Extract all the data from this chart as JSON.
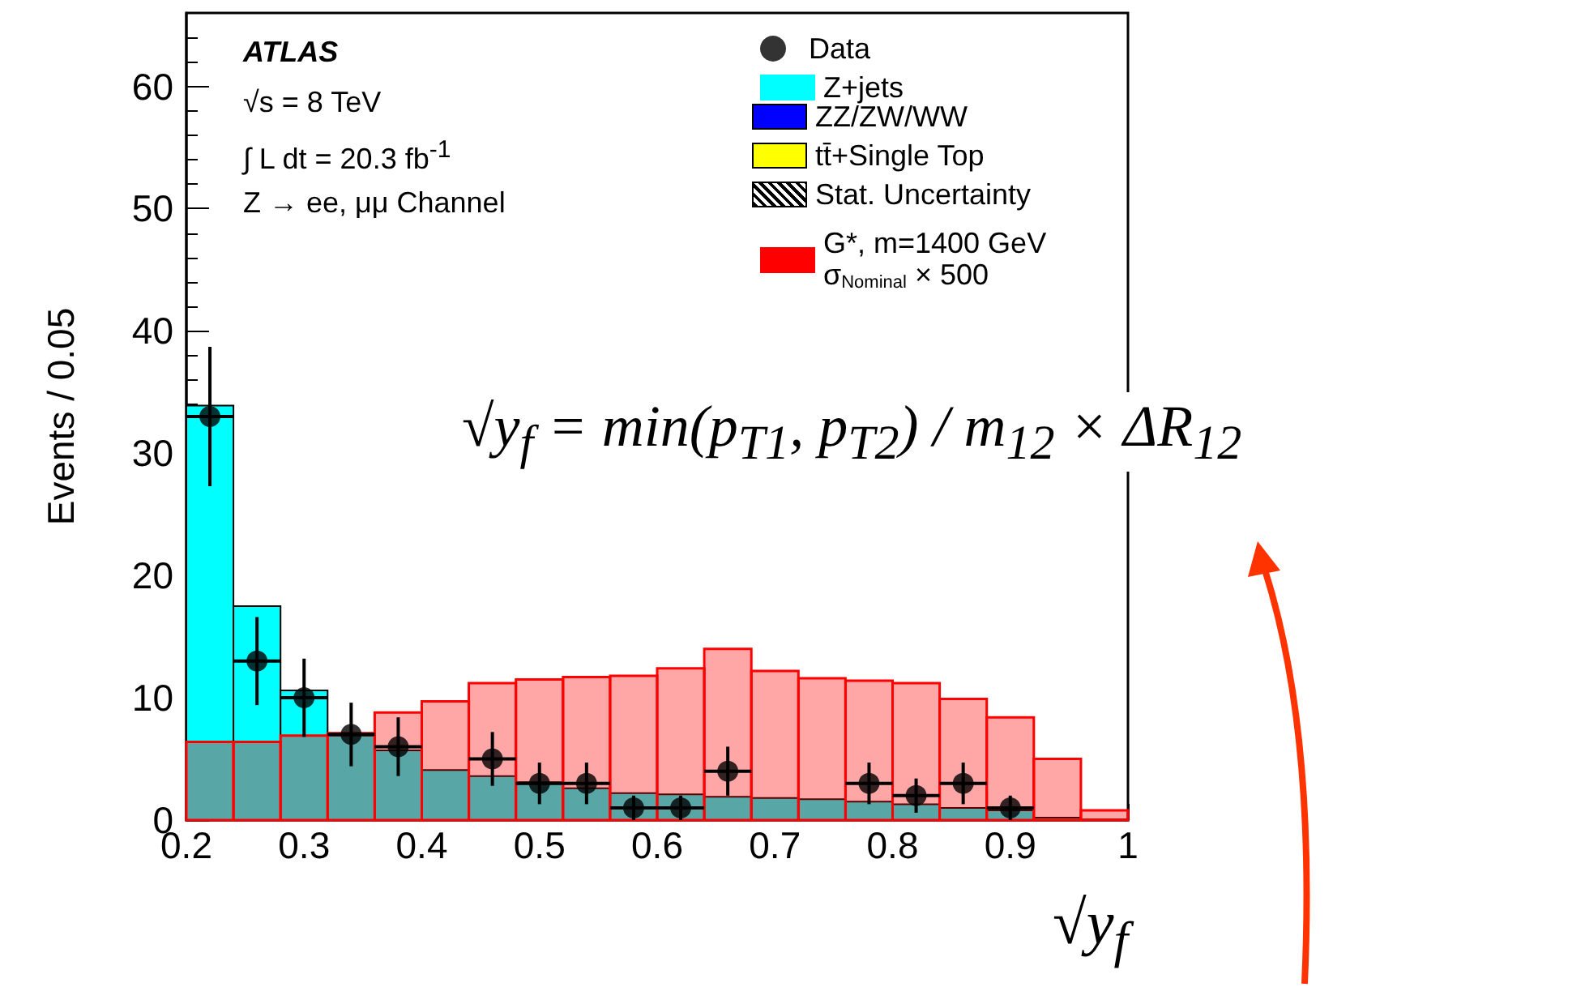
{
  "chart_data": {
    "type": "histogram",
    "xlabel": "√y$_{f}$",
    "ylabel": "Events / 0.05",
    "bins": [
      0.2,
      0.24,
      0.28,
      0.32,
      0.36,
      0.4,
      0.44,
      0.48,
      0.52,
      0.56,
      0.6,
      0.64,
      0.68,
      0.72,
      0.76,
      0.8,
      0.84,
      0.88,
      0.92,
      0.96,
      1.0
    ],
    "xlim": [
      0.2,
      1
    ],
    "xticks": [
      0.2,
      0.3,
      0.4,
      0.5,
      0.6,
      0.7,
      0.8,
      0.9,
      1
    ],
    "ylim": [
      0,
      66
    ],
    "yticks": [
      0,
      10,
      20,
      30,
      40,
      50,
      60
    ],
    "legend": "top right",
    "grid": false,
    "marker": "circle",
    "series": [
      {
        "name": "Data",
        "type": "scatter",
        "color": "#000000",
        "x": [
          0.22,
          0.26,
          0.3,
          0.34,
          0.38,
          0.46,
          0.5,
          0.54,
          0.58,
          0.62,
          0.66,
          0.78,
          0.82,
          0.86,
          0.9
        ],
        "values": [
          33,
          13,
          10,
          7,
          6,
          5,
          3,
          3,
          1,
          1,
          4,
          3,
          2,
          3,
          1
        ],
        "errors": [
          5.7,
          3.6,
          3.2,
          2.6,
          2.4,
          2.2,
          1.7,
          1.7,
          1,
          1,
          2,
          1.7,
          1.4,
          1.7,
          1
        ],
        "xerrors": [
          0.02,
          0.02,
          0.02,
          0.02,
          0.02,
          0.02,
          0.02,
          0.02,
          0.02,
          0.02,
          0.02,
          0.02,
          0.02,
          0.02,
          0.02
        ]
      },
      {
        "name": "Z+jets",
        "color": "#00ffff",
        "values": [
          33.9,
          17.5,
          10.6,
          6.9,
          5.7,
          4.1,
          3.6,
          3.1,
          2.6,
          2.2,
          2.1,
          1.9,
          1.8,
          1.7,
          1.5,
          1.3,
          1.0,
          0.8,
          0.2,
          null
        ]
      },
      {
        "name": "G*, m=1400 GeV\nσ$_{Nominal}$ × 500",
        "color": "#ff0000",
        "values": [
          6.4,
          6.4,
          6.9,
          7.1,
          8.8,
          9.7,
          11.2,
          11.5,
          11.7,
          11.8,
          12.4,
          14.0,
          12.2,
          11.6,
          11.4,
          11.2,
          9.9,
          8.4,
          5.0,
          0.8
        ]
      }
    ],
    "annotations": [
      "ATLAS",
      "√s = 8 TeV",
      "∫ L dt = 20.3 fb$^{-1}$",
      "Z → ee, μμ Channel",
      "√y$_{f}$ = min(p$_{T1}$, p$_{T2}$) / m$_{12}$ × ΔR$_{12}$",
      "ZZ/ZW/WW",
      "tt̄+Single Top",
      "Stat. Uncertainty"
    ]
  }
}
